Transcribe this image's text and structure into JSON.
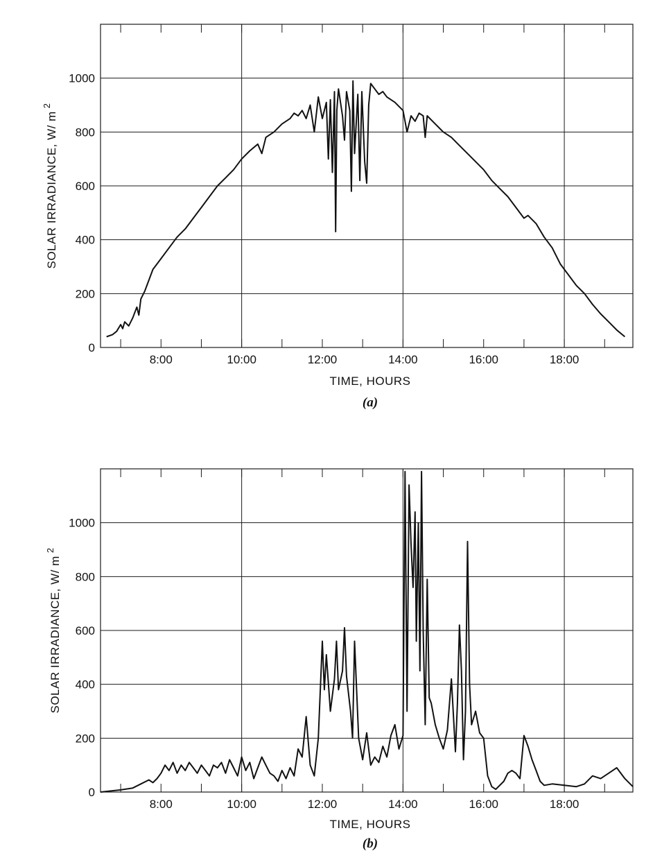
{
  "chart_data": [
    {
      "type": "line",
      "panel_label": "(a)",
      "xlabel": "TIME, HOURS",
      "ylabel": "SOLAR IRRADIANCE, W/ m",
      "ylabel_superscript": "2",
      "xlim": [
        6.5,
        19.7
      ],
      "ylim": [
        0,
        1200
      ],
      "xticks": [
        {
          "value": 8,
          "label": "8:00"
        },
        {
          "value": 10,
          "label": "10:00"
        },
        {
          "value": 12,
          "label": "12:00"
        },
        {
          "value": 14,
          "label": "14:00"
        },
        {
          "value": 16,
          "label": "16:00"
        },
        {
          "value": 18,
          "label": "18:00"
        }
      ],
      "yticks": [
        {
          "value": 0,
          "label": "0"
        },
        {
          "value": 200,
          "label": "200"
        },
        {
          "value": 400,
          "label": "400"
        },
        {
          "value": 600,
          "label": "600"
        },
        {
          "value": 800,
          "label": "800"
        },
        {
          "value": 1000,
          "label": "1000"
        }
      ],
      "grid": true,
      "series": [
        {
          "points": [
            [
              6.65,
              40
            ],
            [
              6.8,
              48
            ],
            [
              6.9,
              60
            ],
            [
              7.0,
              85
            ],
            [
              7.05,
              70
            ],
            [
              7.1,
              95
            ],
            [
              7.2,
              80
            ],
            [
              7.3,
              110
            ],
            [
              7.4,
              150
            ],
            [
              7.45,
              120
            ],
            [
              7.5,
              180
            ],
            [
              7.6,
              210
            ],
            [
              7.7,
              250
            ],
            [
              7.8,
              290
            ],
            [
              7.9,
              310
            ],
            [
              8.0,
              330
            ],
            [
              8.2,
              370
            ],
            [
              8.4,
              410
            ],
            [
              8.6,
              440
            ],
            [
              8.8,
              480
            ],
            [
              9.0,
              520
            ],
            [
              9.2,
              560
            ],
            [
              9.4,
              600
            ],
            [
              9.6,
              630
            ],
            [
              9.8,
              660
            ],
            [
              10.0,
              700
            ],
            [
              10.2,
              730
            ],
            [
              10.4,
              755
            ],
            [
              10.5,
              720
            ],
            [
              10.6,
              780
            ],
            [
              10.8,
              800
            ],
            [
              11.0,
              830
            ],
            [
              11.2,
              850
            ],
            [
              11.3,
              870
            ],
            [
              11.4,
              860
            ],
            [
              11.5,
              880
            ],
            [
              11.6,
              850
            ],
            [
              11.7,
              900
            ],
            [
              11.8,
              800
            ],
            [
              11.9,
              930
            ],
            [
              12.0,
              850
            ],
            [
              12.1,
              910
            ],
            [
              12.15,
              700
            ],
            [
              12.2,
              920
            ],
            [
              12.25,
              650
            ],
            [
              12.3,
              950
            ],
            [
              12.33,
              430
            ],
            [
              12.36,
              880
            ],
            [
              12.4,
              960
            ],
            [
              12.5,
              860
            ],
            [
              12.55,
              770
            ],
            [
              12.6,
              950
            ],
            [
              12.68,
              880
            ],
            [
              12.72,
              580
            ],
            [
              12.76,
              990
            ],
            [
              12.8,
              720
            ],
            [
              12.88,
              940
            ],
            [
              12.93,
              620
            ],
            [
              12.98,
              950
            ],
            [
              13.05,
              690
            ],
            [
              13.1,
              610
            ],
            [
              13.15,
              900
            ],
            [
              13.2,
              980
            ],
            [
              13.3,
              960
            ],
            [
              13.4,
              940
            ],
            [
              13.5,
              950
            ],
            [
              13.6,
              930
            ],
            [
              13.8,
              910
            ],
            [
              14.0,
              880
            ],
            [
              14.1,
              800
            ],
            [
              14.2,
              860
            ],
            [
              14.3,
              840
            ],
            [
              14.4,
              870
            ],
            [
              14.5,
              860
            ],
            [
              14.55,
              780
            ],
            [
              14.6,
              860
            ],
            [
              14.8,
              830
            ],
            [
              15.0,
              800
            ],
            [
              15.2,
              780
            ],
            [
              15.4,
              750
            ],
            [
              15.6,
              720
            ],
            [
              15.8,
              690
            ],
            [
              16.0,
              660
            ],
            [
              16.2,
              620
            ],
            [
              16.4,
              590
            ],
            [
              16.6,
              560
            ],
            [
              16.8,
              520
            ],
            [
              17.0,
              480
            ],
            [
              17.1,
              490
            ],
            [
              17.3,
              460
            ],
            [
              17.5,
              410
            ],
            [
              17.7,
              370
            ],
            [
              17.9,
              310
            ],
            [
              18.1,
              270
            ],
            [
              18.3,
              230
            ],
            [
              18.5,
              200
            ],
            [
              18.7,
              160
            ],
            [
              18.9,
              125
            ],
            [
              19.1,
              95
            ],
            [
              19.3,
              65
            ],
            [
              19.5,
              40
            ]
          ]
        }
      ]
    },
    {
      "type": "line",
      "panel_label": "(b)",
      "xlabel": "TIME, HOURS",
      "ylabel": "SOLAR IRRADIANCE, W/ m",
      "ylabel_superscript": "2",
      "xlim": [
        6.5,
        19.7
      ],
      "ylim": [
        0,
        1200
      ],
      "xticks": [
        {
          "value": 8,
          "label": "8:00"
        },
        {
          "value": 10,
          "label": "10:00"
        },
        {
          "value": 12,
          "label": "12:00"
        },
        {
          "value": 14,
          "label": "14:00"
        },
        {
          "value": 16,
          "label": "16:00"
        },
        {
          "value": 18,
          "label": "18:00"
        }
      ],
      "yticks": [
        {
          "value": 0,
          "label": "0"
        },
        {
          "value": 200,
          "label": "200"
        },
        {
          "value": 400,
          "label": "400"
        },
        {
          "value": 600,
          "label": "600"
        },
        {
          "value": 800,
          "label": "800"
        },
        {
          "value": 1000,
          "label": "1000"
        }
      ],
      "grid": true,
      "series": [
        {
          "points": [
            [
              6.5,
              0
            ],
            [
              6.8,
              5
            ],
            [
              7.0,
              8
            ],
            [
              7.3,
              15
            ],
            [
              7.5,
              30
            ],
            [
              7.7,
              45
            ],
            [
              7.8,
              35
            ],
            [
              7.9,
              50
            ],
            [
              8.0,
              70
            ],
            [
              8.1,
              100
            ],
            [
              8.2,
              80
            ],
            [
              8.3,
              110
            ],
            [
              8.4,
              70
            ],
            [
              8.5,
              100
            ],
            [
              8.6,
              80
            ],
            [
              8.7,
              110
            ],
            [
              8.8,
              90
            ],
            [
              8.9,
              70
            ],
            [
              9.0,
              100
            ],
            [
              9.1,
              80
            ],
            [
              9.2,
              60
            ],
            [
              9.3,
              100
            ],
            [
              9.4,
              90
            ],
            [
              9.5,
              110
            ],
            [
              9.6,
              70
            ],
            [
              9.7,
              120
            ],
            [
              9.8,
              90
            ],
            [
              9.9,
              60
            ],
            [
              10.0,
              130
            ],
            [
              10.1,
              80
            ],
            [
              10.2,
              110
            ],
            [
              10.3,
              50
            ],
            [
              10.4,
              90
            ],
            [
              10.5,
              130
            ],
            [
              10.6,
              100
            ],
            [
              10.7,
              70
            ],
            [
              10.8,
              60
            ],
            [
              10.9,
              40
            ],
            [
              11.0,
              80
            ],
            [
              11.1,
              50
            ],
            [
              11.2,
              90
            ],
            [
              11.3,
              60
            ],
            [
              11.4,
              160
            ],
            [
              11.5,
              130
            ],
            [
              11.6,
              280
            ],
            [
              11.7,
              100
            ],
            [
              11.8,
              60
            ],
            [
              11.9,
              200
            ],
            [
              12.0,
              560
            ],
            [
              12.05,
              380
            ],
            [
              12.1,
              510
            ],
            [
              12.2,
              300
            ],
            [
              12.3,
              420
            ],
            [
              12.35,
              560
            ],
            [
              12.4,
              380
            ],
            [
              12.5,
              450
            ],
            [
              12.55,
              610
            ],
            [
              12.6,
              430
            ],
            [
              12.7,
              300
            ],
            [
              12.75,
              200
            ],
            [
              12.8,
              560
            ],
            [
              12.9,
              200
            ],
            [
              13.0,
              120
            ],
            [
              13.1,
              220
            ],
            [
              13.2,
              100
            ],
            [
              13.3,
              130
            ],
            [
              13.4,
              110
            ],
            [
              13.5,
              170
            ],
            [
              13.6,
              130
            ],
            [
              13.7,
              210
            ],
            [
              13.8,
              250
            ],
            [
              13.9,
              160
            ],
            [
              14.0,
              210
            ],
            [
              14.05,
              1190
            ],
            [
              14.1,
              300
            ],
            [
              14.15,
              1140
            ],
            [
              14.2,
              920
            ],
            [
              14.25,
              760
            ],
            [
              14.3,
              1040
            ],
            [
              14.33,
              560
            ],
            [
              14.38,
              1000
            ],
            [
              14.42,
              450
            ],
            [
              14.46,
              1190
            ],
            [
              14.5,
              600
            ],
            [
              14.55,
              250
            ],
            [
              14.6,
              790
            ],
            [
              14.65,
              350
            ],
            [
              14.7,
              330
            ],
            [
              14.8,
              250
            ],
            [
              14.9,
              200
            ],
            [
              15.0,
              160
            ],
            [
              15.1,
              230
            ],
            [
              15.2,
              420
            ],
            [
              15.3,
              150
            ],
            [
              15.35,
              330
            ],
            [
              15.4,
              620
            ],
            [
              15.45,
              450
            ],
            [
              15.5,
              120
            ],
            [
              15.55,
              300
            ],
            [
              15.6,
              930
            ],
            [
              15.65,
              400
            ],
            [
              15.7,
              250
            ],
            [
              15.8,
              300
            ],
            [
              15.9,
              220
            ],
            [
              16.0,
              200
            ],
            [
              16.1,
              60
            ],
            [
              16.2,
              20
            ],
            [
              16.3,
              10
            ],
            [
              16.5,
              40
            ],
            [
              16.6,
              70
            ],
            [
              16.7,
              80
            ],
            [
              16.8,
              70
            ],
            [
              16.9,
              50
            ],
            [
              17.0,
              210
            ],
            [
              17.1,
              170
            ],
            [
              17.2,
              120
            ],
            [
              17.3,
              80
            ],
            [
              17.4,
              40
            ],
            [
              17.5,
              25
            ],
            [
              17.7,
              30
            ],
            [
              18.0,
              25
            ],
            [
              18.3,
              20
            ],
            [
              18.5,
              30
            ],
            [
              18.7,
              60
            ],
            [
              18.9,
              50
            ],
            [
              19.1,
              70
            ],
            [
              19.3,
              90
            ],
            [
              19.5,
              50
            ],
            [
              19.7,
              20
            ]
          ]
        }
      ]
    }
  ]
}
